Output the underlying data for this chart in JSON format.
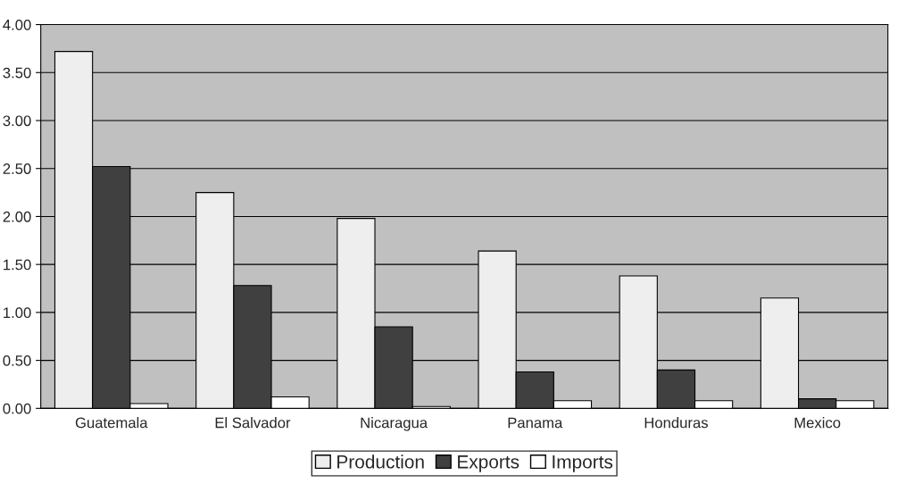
{
  "chart_data": {
    "type": "bar",
    "categories": [
      "Guatemala",
      "El Salvador",
      "Nicaragua",
      "Panama",
      "Honduras",
      "Mexico"
    ],
    "series": [
      {
        "name": "Production",
        "color": "#eeeeee",
        "values": [
          3.72,
          2.25,
          1.98,
          1.64,
          1.38,
          1.15
        ]
      },
      {
        "name": "Exports",
        "color": "#404040",
        "values": [
          2.52,
          1.28,
          0.85,
          0.38,
          0.4,
          0.1
        ]
      },
      {
        "name": "Imports",
        "color": "#ffffff",
        "values": [
          0.05,
          0.12,
          0.02,
          0.08,
          0.08,
          0.08
        ]
      }
    ],
    "ylim": [
      0,
      4
    ],
    "yticks": [
      {
        "value": 0,
        "label": "0.00"
      },
      {
        "value": 0.5,
        "label": "0.50"
      },
      {
        "value": 1,
        "label": "1.00"
      },
      {
        "value": 1.5,
        "label": "1.50"
      },
      {
        "value": 2,
        "label": "2.00"
      },
      {
        "value": 2.5,
        "label": "2.50"
      },
      {
        "value": 3,
        "label": "3.00"
      },
      {
        "value": 3.5,
        "label": "3.50"
      },
      {
        "value": 4,
        "label": "4.00"
      }
    ],
    "grid": "y",
    "legend": "bottom"
  }
}
